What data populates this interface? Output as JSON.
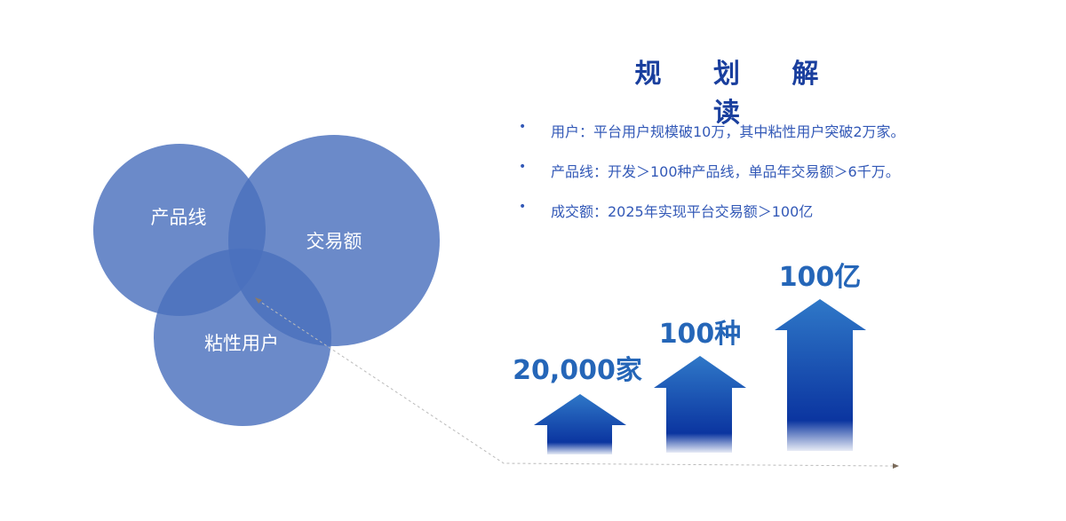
{
  "title": "规 划 解 读",
  "bullets": [
    {
      "text": "用户：平台用户规模破10万，其中粘性用户突破2万家。"
    },
    {
      "text": "产品线：开发＞100种产品线，单品年交易额＞6千万。"
    },
    {
      "text": "成交额：2025年实现平台交易额＞100亿"
    }
  ],
  "bullet_glyph": "•",
  "venn": {
    "circles": [
      {
        "label": "产品线"
      },
      {
        "label": "交易额"
      },
      {
        "label": "粘性用户"
      }
    ],
    "color": "#4a70bd"
  },
  "arrows": [
    {
      "label": "20,000家"
    },
    {
      "label": "100种"
    },
    {
      "label": "100亿"
    }
  ],
  "colors": {
    "title": "#1a3f9e",
    "text": "#3359b7",
    "arrow_top": "#2f78c8",
    "arrow_bottom": "#0b35a0",
    "arrow_label": "#2566b8"
  }
}
